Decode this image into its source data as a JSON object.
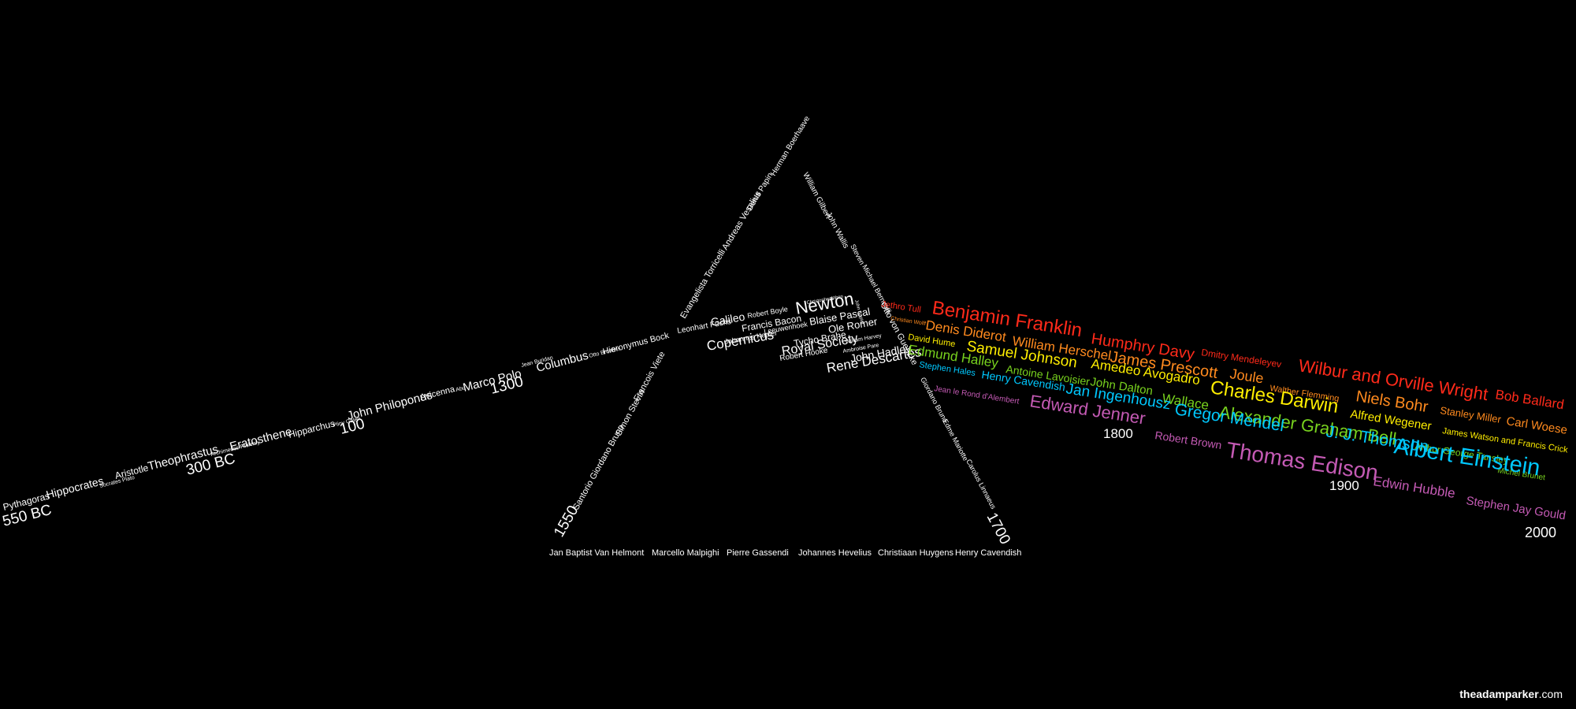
{
  "colors": {
    "background": "#000000",
    "white": "#ffffff",
    "red": "#ff2a1a",
    "orange": "#ff8a1e",
    "yellow": "#ffee00",
    "green": "#78d21e",
    "cyan": "#00c8ff",
    "violet": "#c45ab4"
  },
  "incoming_beam": {
    "names": [
      "Pythagoras",
      "Hippocrates",
      "Socrates Plato",
      "Aristotle",
      "Theophrastus",
      "Archimedes Ptolemy",
      "Eratosthene",
      "Hipparchus",
      "Pliny Galen",
      "John Philoponus",
      "Avicenna",
      "Abu",
      "Marco Polo",
      "Jean Buridan",
      "Columbus",
      "Otto Brunfels",
      "Hieronymus Bock"
    ],
    "years": [
      "550 BC",
      "300 BC",
      "100",
      "1300"
    ]
  },
  "prism": {
    "left_side_names": [
      "Evangelista Torricelli",
      "Andreas Vesalius",
      "Denis Papin",
      "Herman Boerhaave"
    ],
    "left_lower_names": [
      "Santorio Giordano Bruno",
      "Simon Stevin",
      "Francois Viete"
    ],
    "right_side_names": [
      "William Gilbert",
      "John Wallis",
      "Steven",
      "Michael Bernoulli",
      "Otto von Guericke"
    ],
    "right_lower_names": [
      "Giordano Bruno",
      "Edme Mariotte",
      "Carolus Linnaeus"
    ],
    "inner_names": [
      "Leonhart Fuchs",
      "Galileo",
      "Robert Boyle",
      "Christopher Wren",
      "Newton",
      "John Napier",
      "Francis Bacon",
      "Leeuwenhoek",
      "Blaise Pascal",
      "Ole Romer",
      "Johannes Kepler",
      "Tycho Brahe",
      "William Harvey",
      "Copernicus",
      "Royal Society",
      "Ambroise Pare",
      "Robert Hooke",
      "John Hadley",
      "Rene Descartes"
    ],
    "base_names": [
      "Jan Baptist Van Helmont",
      "Marcello Malpighi",
      "Pierre Gassendi",
      "Johannes Hevelius",
      "Christiaan Huygens",
      "Henry Cavendish"
    ],
    "year_left": "1550",
    "year_right": "1700"
  },
  "spectrum": {
    "red": [
      "Jethro Tull",
      "Benjamin Franklin",
      "Humphry Davy",
      "Dmitry Mendeleyev",
      "Wilbur and Orville Wright",
      "Bob Ballard"
    ],
    "orange": [
      "Christian Wolff",
      "Denis Diderot",
      "William Herschel",
      "James Prescott",
      "Joule",
      "Walther Flemming",
      "Niels Bohr",
      "Stanley Miller",
      "Carl Woese"
    ],
    "yellow": [
      "David Hume",
      "Samuel Johnson",
      "Amedeo Avogadro",
      "Charles Darwin",
      "Alfred Wegener",
      "James Watson and Francis Crick"
    ],
    "green": [
      "Edmund Halley",
      "Antoine Lavoisier",
      "John Dalton",
      "Wallace",
      "Alexander Graham Bell",
      "Arthur George Tansley",
      "Michel Brunet"
    ],
    "cyan": [
      "Stephen Hales",
      "Henry Cavendish",
      "Jan Ingenhousz",
      "Gregor Mendel",
      "J. J. Thomson",
      "Albert Einstein"
    ],
    "violet": [
      "Jean le Rond d'Alembert",
      "Edward Jenner",
      "Robert Brown",
      "Thomas Edison",
      "Edwin Hubble",
      "Stephen Jay Gould"
    ],
    "years": [
      "1800",
      "1900",
      "2000"
    ]
  },
  "credit": {
    "bold": "theadamparker",
    "rest": ".com"
  }
}
